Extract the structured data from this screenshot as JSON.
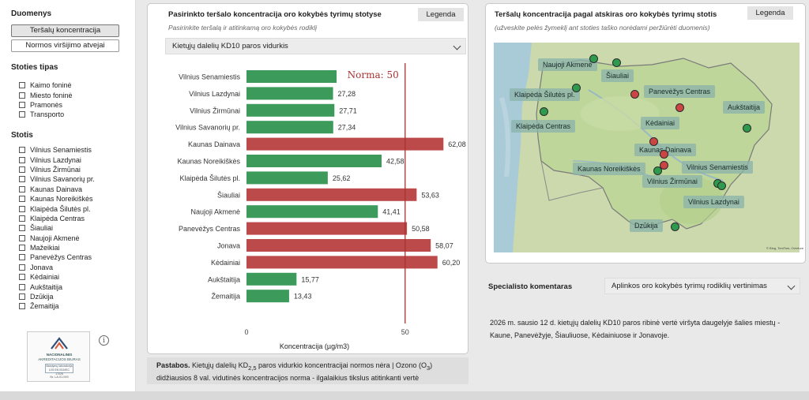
{
  "sidebar": {
    "data_title": "Duomenys",
    "buttons": [
      {
        "label": "Teršalų koncentracija",
        "active": true
      },
      {
        "label": "Normos viršijimo atvejai",
        "active": false
      }
    ],
    "station_type_title": "Stoties tipas",
    "station_types": [
      "Kaimo foninė",
      "Miesto foninė",
      "Pramonės",
      "Transporto"
    ],
    "stations_title": "Stotis",
    "stations": [
      "Vilnius Senamiestis",
      "Vilnius Lazdynai",
      "Vilnius Žirmūnai",
      "Vilnius Savanorių pr.",
      "Kaunas Dainava",
      "Kaunas Noreikiškės",
      "Klaipėda Šilutės pl.",
      "Klaipėda Centras",
      "Šiauliai",
      "Naujoji Akmenė",
      "Mažeikiai",
      "Panevėžys Centras",
      "Jonava",
      "Kėdainiai",
      "Aukštaitija",
      "Dzūkija",
      "Žemaitija"
    ],
    "logo": {
      "line1": "NACIONALINIS",
      "line2": "AKREDITACIJOS BIURAS",
      "badge": "Bandymų laboratorija LVS EN ISO/IEC 17025",
      "number": "Nr. LA.01.093"
    },
    "info_icon": "i"
  },
  "chart_panel": {
    "title": "Pasirinkto teršalo koncentracija oro kokybės tyrimų stotyse",
    "subtitle": "Pasirinkite teršalą ir atitinkamą oro kokybės rodiklį",
    "legend_label": "Legenda",
    "dropdown_value": "Kietųjų dalelių KD10 paros vidurkis"
  },
  "chart_data": {
    "type": "bar",
    "orientation": "horizontal",
    "categories": [
      "Vilnius Senamiestis",
      "Vilnius Lazdynai",
      "Vilnius Žirmūnai",
      "Vilnius Savanorių pr.",
      "Kaunas Dainava",
      "Kaunas Noreikiškės",
      "Klaipėda Šilutės pl.",
      "Šiauliai",
      "Naujoji Akmenė",
      "Panevėžys Centras",
      "Jonava",
      "Kėdainiai",
      "Aukštaitija",
      "Žemaitija"
    ],
    "values": [
      28.4,
      27.28,
      27.71,
      27.34,
      62.08,
      42.58,
      25.62,
      53.63,
      41.41,
      50.58,
      58.07,
      60.2,
      15.77,
      13.43
    ],
    "value_labels": [
      "",
      "27,28",
      "27,71",
      "27,34",
      "62,08",
      "42,58",
      "25,62",
      "53,63",
      "41,41",
      "50,58",
      "58,07",
      "60,20",
      "15,77",
      "13,43"
    ],
    "colors": {
      "below_norm": "#3c9a5a",
      "above_norm": "#bd4a4a",
      "norm_line": "#a83232"
    },
    "norm_value": 50,
    "norm_label": "Norma: 50",
    "xlabel": "Koncentracija (µg/m3)",
    "xlim": [
      0,
      64
    ],
    "xticks": [
      0,
      50
    ],
    "xtick_labels": [
      "0",
      "50"
    ]
  },
  "note": {
    "bold": "Pastabos.",
    "text_a": " Kietųjų dalelių KD",
    "sub_a": "2,5",
    "text_b": " paros vidurkio koncentracijai normos nėra | Ozono (O",
    "sub_b": "3",
    "text_c": ")",
    "line2": "didžiausios 8 val. vidutinės koncentracijos norma - ilgalaikius tikslus atitinkanti vertė"
  },
  "map_panel": {
    "title": "Teršalų koncentracija pagal atskiras oro kokybės tyrimų stotis",
    "subtitle": "(užveskite pelės žymeklį ant stoties taško norėdami peržiūrėti duomenis)",
    "legend_label": "Legenda",
    "attribution": "© Bing, TomTom, Overture",
    "labels": [
      "Naujoji Akmenė",
      "Šiauliai",
      "Klaipėda Šilutės pl.",
      "Panevėžys Centras",
      "Aukštaitija",
      "Klaipėda Centras",
      "Kėdainiai",
      "Kaunas Dainava",
      "Kaunas Noreikiškės",
      "Vilnius Senamiestis",
      "Vilnius Žirmūnai",
      "Vilnius Lazdynai",
      "Dzūkija"
    ],
    "colors": {
      "green": "#2e9a4e",
      "red": "#cc4545"
    }
  },
  "specialist": {
    "title": "Specialisto komentaras",
    "dropdown_value": "Aplinkos oro kokybės tyrimų rodiklių vertinimas",
    "comment": "2026 m. sausio 12 d. kietųjų dalelių KD10 paros ribinė vertė viršyta daugelyje šalies miestų - Kaune, Panevėžyje, Šiauliuose, Kėdainiuose ir Jonavoje."
  }
}
